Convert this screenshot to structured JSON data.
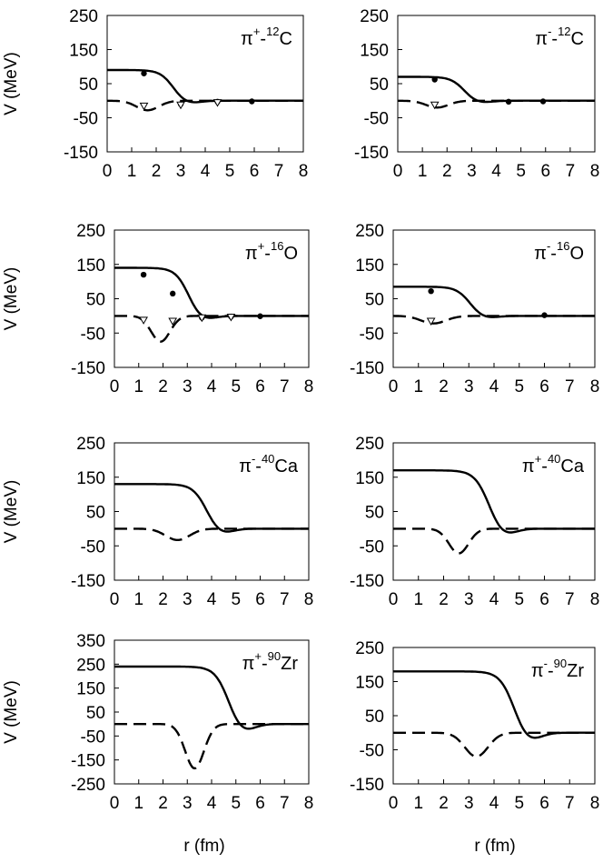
{
  "figure": {
    "x_axis_title": "r (fm)",
    "y_axis_title": "V (MeV)"
  },
  "chart_data": [
    {
      "type": "line",
      "panel": "top-left",
      "title": {
        "pre": "π",
        "charge": "+",
        "nucleus_sup": "12",
        "nucleus": "C"
      },
      "xlabel": "r (fm)",
      "ylabel": "V (MeV)",
      "xlim": [
        0,
        8
      ],
      "ylim": [
        -150,
        250
      ],
      "xticks": [
        "0",
        "1",
        "2",
        "3",
        "4",
        "5",
        "6",
        "7",
        "8"
      ],
      "yticks": [
        "-150",
        "-50",
        "50",
        "150",
        "250"
      ],
      "curves": {
        "solid": {
          "v0": 90,
          "R": 2.2,
          "a": 0.28,
          "p": 0.55
        },
        "dashed": {
          "d": 28,
          "rc": 1.65,
          "s": 0.65
        }
      },
      "points_circle": [
        {
          "x": 1.5,
          "y": 80
        },
        {
          "x": 3.0,
          "y": -10
        },
        {
          "x": 4.5,
          "y": -3
        },
        {
          "x": 5.9,
          "y": -2
        }
      ],
      "points_triangle": [
        {
          "x": 1.5,
          "y": -15
        },
        {
          "x": 3.0,
          "y": -12
        },
        {
          "x": 4.5,
          "y": -5
        }
      ]
    },
    {
      "type": "line",
      "panel": "top-right",
      "title": {
        "pre": "π",
        "charge": "-",
        "nucleus_sup": "12",
        "nucleus": "C"
      },
      "xlabel": "r (fm)",
      "ylabel": "V (MeV)",
      "xlim": [
        0,
        8
      ],
      "ylim": [
        -150,
        250
      ],
      "xticks": [
        "0",
        "1",
        "2",
        "3",
        "4",
        "5",
        "6",
        "7",
        "8"
      ],
      "yticks": [
        "-150",
        "-50",
        "50",
        "150",
        "250"
      ],
      "curves": {
        "solid": {
          "v0": 70,
          "R": 2.2,
          "a": 0.28,
          "p": 0.55
        },
        "dashed": {
          "d": 20,
          "rc": 1.6,
          "s": 0.65
        }
      },
      "points_circle": [
        {
          "x": 1.5,
          "y": 62
        },
        {
          "x": 4.5,
          "y": -3
        },
        {
          "x": 5.9,
          "y": -2
        }
      ],
      "points_triangle": [
        {
          "x": 1.5,
          "y": -12
        }
      ]
    },
    {
      "type": "line",
      "panel": "row2-left",
      "title": {
        "pre": "π",
        "charge": "+",
        "nucleus_sup": "16",
        "nucleus": "O"
      },
      "xlabel": "r (fm)",
      "ylabel": "V (MeV)",
      "xlim": [
        0,
        8
      ],
      "ylim": [
        -150,
        250
      ],
      "xticks": [
        "0",
        "1",
        "2",
        "3",
        "4",
        "5",
        "6",
        "7",
        "8"
      ],
      "yticks": [
        "-150",
        "-50",
        "50",
        "150",
        "250"
      ],
      "curves": {
        "solid": {
          "v0": 140,
          "R": 2.55,
          "a": 0.28,
          "p": 0.5
        },
        "dashed": {
          "d": 75,
          "rc": 1.9,
          "s": 0.55
        }
      },
      "points_circle": [
        {
          "x": 1.2,
          "y": 120
        },
        {
          "x": 2.4,
          "y": 65
        },
        {
          "x": 3.6,
          "y": -5
        },
        {
          "x": 4.8,
          "y": -2
        },
        {
          "x": 6.0,
          "y": -1
        }
      ],
      "points_triangle": [
        {
          "x": 1.2,
          "y": -12
        },
        {
          "x": 2.4,
          "y": -15
        },
        {
          "x": 3.6,
          "y": -5
        },
        {
          "x": 4.8,
          "y": -3
        }
      ]
    },
    {
      "type": "line",
      "panel": "row2-right",
      "title": {
        "pre": "π",
        "charge": "-",
        "nucleus_sup": "16",
        "nucleus": "O"
      },
      "xlabel": "r (fm)",
      "ylabel": "V (MeV)",
      "xlim": [
        0,
        8
      ],
      "ylim": [
        -150,
        250
      ],
      "xticks": [
        "0",
        "1",
        "2",
        "3",
        "4",
        "5",
        "6",
        "7",
        "8"
      ],
      "yticks": [
        "-150",
        "-50",
        "50",
        "150",
        "250"
      ],
      "curves": {
        "solid": {
          "v0": 85,
          "R": 2.55,
          "a": 0.28,
          "p": 0.5
        },
        "dashed": {
          "d": 22,
          "rc": 1.6,
          "s": 0.7
        }
      },
      "points_circle": [
        {
          "x": 1.5,
          "y": 72
        },
        {
          "x": 6.0,
          "y": 2
        }
      ],
      "points_triangle": [
        {
          "x": 1.5,
          "y": -15
        }
      ]
    },
    {
      "type": "line",
      "panel": "row3-left",
      "title": {
        "pre": "π",
        "charge": "-",
        "nucleus_sup": "40",
        "nucleus": "Ca"
      },
      "xlabel": "r (fm)",
      "ylabel": "V (MeV)",
      "xlim": [
        0,
        8
      ],
      "ylim": [
        -150,
        250
      ],
      "xticks": [
        "0",
        "1",
        "2",
        "3",
        "4",
        "5",
        "6",
        "7",
        "8"
      ],
      "yticks": [
        "-150",
        "-50",
        "50",
        "150",
        "250"
      ],
      "curves": {
        "solid": {
          "v0": 130,
          "R": 3.3,
          "a": 0.3,
          "p": 0.7
        },
        "dashed": {
          "d": 33,
          "rc": 2.6,
          "s": 0.7
        }
      },
      "points_circle": [],
      "points_triangle": []
    },
    {
      "type": "line",
      "panel": "row3-right",
      "title": {
        "pre": "π",
        "charge": "+",
        "nucleus_sup": "40",
        "nucleus": "Ca"
      },
      "xlabel": "r (fm)",
      "ylabel": "V (MeV)",
      "xlim": [
        0,
        8
      ],
      "ylim": [
        -150,
        250
      ],
      "xticks": [
        "0",
        "1",
        "2",
        "3",
        "4",
        "5",
        "6",
        "7",
        "8"
      ],
      "yticks": [
        "-150",
        "-50",
        "50",
        "150",
        "250"
      ],
      "curves": {
        "solid": {
          "v0": 170,
          "R": 3.3,
          "a": 0.3,
          "p": 0.7
        },
        "dashed": {
          "d": 72,
          "rc": 2.6,
          "s": 0.55
        }
      },
      "points_circle": [],
      "points_triangle": []
    },
    {
      "type": "line",
      "panel": "row4-left",
      "title": {
        "pre": "π",
        "charge": "+",
        "nucleus_sup": "90",
        "nucleus": "Zr"
      },
      "xlabel": "r (fm)",
      "ylabel": "V (MeV)",
      "xlim": [
        0,
        8
      ],
      "ylim": [
        -250,
        350
      ],
      "xticks": [
        "0",
        "1",
        "2",
        "3",
        "4",
        "5",
        "6",
        "7",
        "8"
      ],
      "yticks": [
        "-250",
        "-150",
        "-50",
        "50",
        "150",
        "250",
        "350"
      ],
      "curves": {
        "solid": {
          "v0": 240,
          "R": 4.2,
          "a": 0.3,
          "p": 0.8
        },
        "dashed": {
          "d": 185,
          "rc": 3.3,
          "s": 0.55
        }
      },
      "points_circle": [],
      "points_triangle": []
    },
    {
      "type": "line",
      "panel": "row4-right",
      "title": {
        "pre": "π",
        "charge": "-",
        "nucleus_sup": "90",
        "nucleus": "Zr"
      },
      "xlabel": "r (fm)",
      "ylabel": "V (MeV)",
      "xlim": [
        0,
        8
      ],
      "ylim": [
        -150,
        250
      ],
      "xticks": [
        "0",
        "1",
        "2",
        "3",
        "4",
        "5",
        "6",
        "7",
        "8"
      ],
      "yticks": [
        "-150",
        "-50",
        "50",
        "150",
        "250"
      ],
      "curves": {
        "solid": {
          "v0": 180,
          "R": 4.3,
          "a": 0.3,
          "p": 0.8
        },
        "dashed": {
          "d": 70,
          "rc": 3.3,
          "s": 0.65
        }
      },
      "points_circle": [],
      "points_triangle": []
    }
  ]
}
